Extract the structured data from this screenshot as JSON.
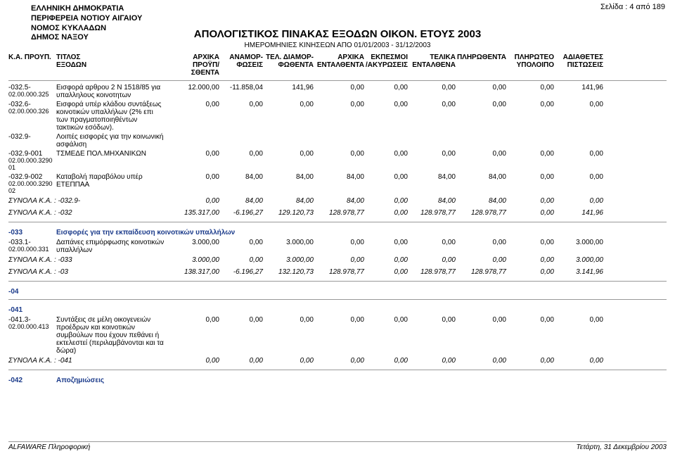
{
  "header": {
    "org_lines": [
      "ΕΛΛΗΝΙΚΗ ΔΗΜΟΚΡΑΤΙΑ",
      "ΠΕΡΙΦΕΡΕΙΑ ΝΟΤΙΟΥ ΑΙΓΑΙΟΥ",
      "ΝΟΜΟΣ ΚΥΚΛΑΔΩΝ",
      "ΔΗΜΟΣ ΝΑΞΟΥ"
    ],
    "page_label": "Σελίδα : 4 από 189",
    "title": "ΑΠΟΛΟΓΙΣΤΙΚΟΣ ΠΙΝΑΚΑΣ ΕΞΟΔΩΝ ΟΙΚΟΝ. ΕΤΟΥΣ 2003",
    "subtitle": "ΗΜΕΡΟΜΗΝΙΕΣ ΚΙΝΗΣΕΩΝ ΑΠΟ 01/01/2003 - 31/12/2003"
  },
  "columns": {
    "c0a": "Κ.Α. ΠΡΟΥΠ.",
    "c1a": "ΤΙΤΛΟΣ",
    "c1b": "ΕΞΟΔΩΝ",
    "c2a": "ΑΡΧΙΚΑ",
    "c2b": "ΠΡΟΫΠ/ΣΘΕΝΤΑ",
    "c3a": "ΑΝΑΜΟΡ-",
    "c3b": "ΦΩΣΕΙΣ",
    "c4a": "ΤΕΛ. ΔΙΑΜΟΡ-",
    "c4b": "ΦΩΘΕΝΤΑ",
    "c5a": "ΑΡΧΙΚΑ",
    "c5b": "ΕΝΤΑΛΘΕΝΤΑ",
    "c6a": "ΕΚΠΕΣΜΟΙ",
    "c6b": "/ΑΚΥΡΩΣΕΙΣ",
    "c7a": "ΤΕΛΙΚΑ",
    "c7b": "ΕΝΤΑΛΘΕΝΑ",
    "c8a": "ΠΛΗΡΩΘΕΝΤΑ",
    "c9a": "ΠΛΗΡΩΤΕΟ",
    "c9b": "ΥΠΟΛΟΙΠΟ",
    "c10a": "ΑΔΙΑΘΕΤΕΣ",
    "c10b": "ΠΙΣΤΩΣΕΙΣ"
  },
  "rows": [
    {
      "code": "-032.5-",
      "sub": "02.00.000.325",
      "desc": "Εισφορά αρθρου 2 Ν 1518/85 για υπαλληλους κοινοτητων",
      "v": [
        "12.000,00",
        "-11.858,04",
        "141,96",
        "0,00",
        "0,00",
        "0,00",
        "0,00",
        "0,00",
        "141,96"
      ]
    },
    {
      "code": "-032.6-",
      "sub": "02.00.000.326",
      "desc": "Εισφορά υπέρ κλάδου συντάξεως κοινοτικών υπαλλήλων (2% επι των πραγματοποιηθέντων τακτικών εσόδων).",
      "v": [
        "0,00",
        "0,00",
        "0,00",
        "0,00",
        "0,00",
        "0,00",
        "0,00",
        "0,00",
        "0,00"
      ]
    },
    {
      "code": "-032.9-",
      "sub": "",
      "desc": "Λοιπές εισφορές για την κοινωνική ασφάλιση",
      "v": [
        "",
        "",
        "",
        "",
        "",
        "",
        "",
        "",
        ""
      ]
    },
    {
      "code": "-032.9-001",
      "sub": "02.00.000.3290 01",
      "desc": "ΤΣΜΕΔΕ ΠΟΛ.ΜΗΧΑΝΙΚΩΝ",
      "v": [
        "0,00",
        "0,00",
        "0,00",
        "0,00",
        "0,00",
        "0,00",
        "0,00",
        "0,00",
        "0,00"
      ]
    },
    {
      "code": "-032.9-002",
      "sub": "02.00.000.3290 02",
      "desc": "Καταβολή παραβόλου υπέρ ΕΤΕΠΠΑΑ",
      "v": [
        "0,00",
        "84,00",
        "84,00",
        "84,00",
        "0,00",
        "84,00",
        "84,00",
        "0,00",
        "0,00"
      ]
    }
  ],
  "totals_block1": [
    {
      "label": "ΣΥΝΟΛΑ Κ.Α. :   -032.9-",
      "v": [
        "0,00",
        "84,00",
        "84,00",
        "84,00",
        "0,00",
        "84,00",
        "84,00",
        "0,00",
        "0,00"
      ]
    },
    {
      "label": "ΣΥΝΟΛΑ Κ.Α. :   -032",
      "v": [
        "135.317,00",
        "-6.196,27",
        "129.120,73",
        "128.978,77",
        "0,00",
        "128.978,77",
        "128.978,77",
        "0,00",
        "141,96"
      ]
    }
  ],
  "section_033": {
    "code": "-033",
    "title": "Εισφορές για την εκπαίδευση κοινοτικών υπαλλήλων"
  },
  "rows_033": [
    {
      "code": "-033.1-",
      "sub": "02.00.000.331",
      "desc": "Δαπάνες επιμόρφωσης κοινοτικών υπαλλήλων",
      "v": [
        "3.000,00",
        "0,00",
        "3.000,00",
        "0,00",
        "0,00",
        "0,00",
        "0,00",
        "0,00",
        "3.000,00"
      ]
    }
  ],
  "totals_block2": [
    {
      "label": "ΣΥΝΟΛΑ Κ.Α. :   -033",
      "v": [
        "3.000,00",
        "0,00",
        "3.000,00",
        "0,00",
        "0,00",
        "0,00",
        "0,00",
        "0,00",
        "3.000,00"
      ]
    },
    {
      "label": "ΣΥΝΟΛΑ Κ.Α. :   -03",
      "v": [
        "138.317,00",
        "-6.196,27",
        "132.120,73",
        "128.978,77",
        "0,00",
        "128.978,77",
        "128.978,77",
        "0,00",
        "3.141,96"
      ]
    }
  ],
  "section_04": {
    "code": "-04",
    "title": ""
  },
  "section_041": {
    "code": "-041",
    "title": ""
  },
  "rows_041": [
    {
      "code": "-041.3-",
      "sub": "02.00.000.413",
      "desc": "Συντάξεις σε μέλη οικογενειών προέδρων και κοινοτικών συμβούλων που έχουν πεθάνει ή εκτελεστεί (περιλαμβάνονται και τα δώρα)",
      "v": [
        "0,00",
        "0,00",
        "0,00",
        "0,00",
        "0,00",
        "0,00",
        "0,00",
        "0,00",
        "0,00"
      ]
    }
  ],
  "totals_block3": [
    {
      "label": "ΣΥΝΟΛΑ Κ.Α. :   -041",
      "v": [
        "0,00",
        "0,00",
        "0,00",
        "0,00",
        "0,00",
        "0,00",
        "0,00",
        "0,00",
        "0,00"
      ]
    }
  ],
  "section_042": {
    "code": "-042",
    "title": "Αποζημιώσεις"
  },
  "footer": {
    "left": "ALFAWARE Πληροφορική",
    "right": "Τετάρτη, 31 Δεκεμβρίου 2003"
  },
  "colors": {
    "section_blue": "#1a3a8a"
  }
}
